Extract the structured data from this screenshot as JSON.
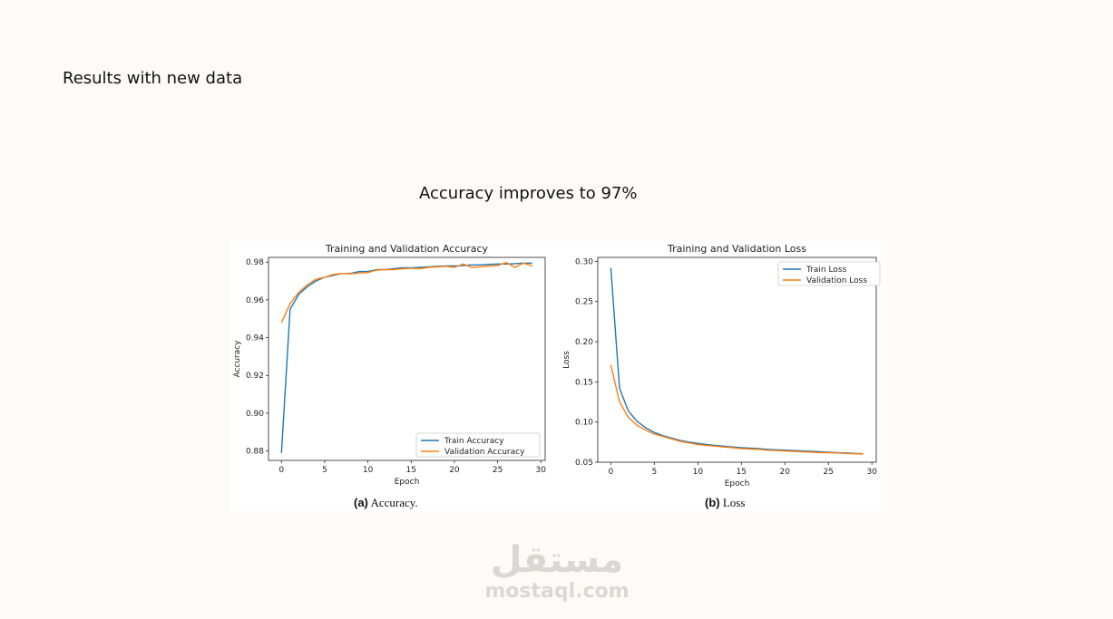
{
  "slide": {
    "title": "Results with new data",
    "subtitle": "Accuracy improves to 97%"
  },
  "captions": {
    "a_label": "(a)",
    "a_text": "Accuracy.",
    "b_label": "(b)",
    "b_text": "Loss"
  },
  "watermark": {
    "arabic": "مستقل",
    "latin": "mostaql.com"
  },
  "colors": {
    "train": "#1f77b4",
    "validation": "#ff7f0e"
  },
  "chart_data": [
    {
      "type": "line",
      "title": "Training and Validation Accuracy",
      "xlabel": "Epoch",
      "ylabel": "Accuracy",
      "xlim": [
        -1.5,
        30.5
      ],
      "ylim": [
        0.875,
        0.9825
      ],
      "xticks": [
        0,
        5,
        10,
        15,
        20,
        25,
        30
      ],
      "yticks": [
        0.88,
        0.9,
        0.92,
        0.94,
        0.96,
        0.98
      ],
      "yticks_fmt": 2,
      "legend": "lower-right",
      "grid": false,
      "series": [
        {
          "name": "Train Accuracy",
          "color": "#1f77b4",
          "x": [
            0,
            1,
            2,
            3,
            4,
            5,
            6,
            7,
            8,
            9,
            10,
            11,
            12,
            13,
            14,
            15,
            16,
            17,
            18,
            19,
            20,
            21,
            22,
            23,
            24,
            25,
            26,
            27,
            28,
            29
          ],
          "values": [
            0.879,
            0.955,
            0.963,
            0.967,
            0.97,
            0.972,
            0.973,
            0.974,
            0.974,
            0.975,
            0.975,
            0.976,
            0.976,
            0.9765,
            0.977,
            0.977,
            0.9772,
            0.9775,
            0.9778,
            0.978,
            0.978,
            0.9782,
            0.9785,
            0.9785,
            0.9788,
            0.979,
            0.979,
            0.9792,
            0.9795,
            0.9795
          ]
        },
        {
          "name": "Validation Accuracy",
          "color": "#ff7f0e",
          "x": [
            0,
            1,
            2,
            3,
            4,
            5,
            6,
            7,
            8,
            9,
            10,
            11,
            12,
            13,
            14,
            15,
            16,
            17,
            18,
            19,
            20,
            21,
            22,
            23,
            24,
            25,
            26,
            27,
            28,
            29
          ],
          "values": [
            0.948,
            0.958,
            0.964,
            0.968,
            0.971,
            0.972,
            0.9735,
            0.974,
            0.9738,
            0.9742,
            0.9745,
            0.9758,
            0.976,
            0.976,
            0.9765,
            0.9768,
            0.9765,
            0.9772,
            0.9775,
            0.9778,
            0.9772,
            0.979,
            0.9772,
            0.9775,
            0.978,
            0.9782,
            0.9798,
            0.9772,
            0.9795,
            0.978
          ]
        }
      ]
    },
    {
      "type": "line",
      "title": "Training and Validation Loss",
      "xlabel": "Epoch",
      "ylabel": "Loss",
      "xlim": [
        -1.5,
        30.5
      ],
      "ylim": [
        0.05,
        0.305
      ],
      "xticks": [
        0,
        5,
        10,
        15,
        20,
        25,
        30
      ],
      "yticks": [
        0.05,
        0.1,
        0.15,
        0.2,
        0.25,
        0.3
      ],
      "yticks_fmt": 2,
      "legend": "top-right",
      "grid": false,
      "series": [
        {
          "name": "Train Loss",
          "color": "#1f77b4",
          "x": [
            0,
            1,
            2,
            3,
            4,
            5,
            6,
            7,
            8,
            9,
            10,
            11,
            12,
            13,
            14,
            15,
            16,
            17,
            18,
            19,
            20,
            21,
            22,
            23,
            24,
            25,
            26,
            27,
            28,
            29
          ],
          "values": [
            0.292,
            0.142,
            0.114,
            0.101,
            0.093,
            0.087,
            0.083,
            0.08,
            0.077,
            0.075,
            0.0735,
            0.072,
            0.071,
            0.07,
            0.069,
            0.068,
            0.0675,
            0.067,
            0.066,
            0.0655,
            0.065,
            0.0645,
            0.064,
            0.0635,
            0.063,
            0.0625,
            0.062,
            0.0615,
            0.061,
            0.0605
          ]
        },
        {
          "name": "Validation Loss",
          "color": "#ff7f0e",
          "x": [
            0,
            1,
            2,
            3,
            4,
            5,
            6,
            7,
            8,
            9,
            10,
            11,
            12,
            13,
            14,
            15,
            16,
            17,
            18,
            19,
            20,
            21,
            22,
            23,
            24,
            25,
            26,
            27,
            28,
            29
          ],
          "values": [
            0.171,
            0.125,
            0.106,
            0.096,
            0.09,
            0.085,
            0.082,
            0.079,
            0.076,
            0.074,
            0.072,
            0.071,
            0.07,
            0.069,
            0.068,
            0.067,
            0.0665,
            0.066,
            0.065,
            0.0645,
            0.064,
            0.0635,
            0.063,
            0.0625,
            0.062,
            0.0618,
            0.0615,
            0.061,
            0.0605,
            0.0602
          ]
        }
      ]
    }
  ]
}
